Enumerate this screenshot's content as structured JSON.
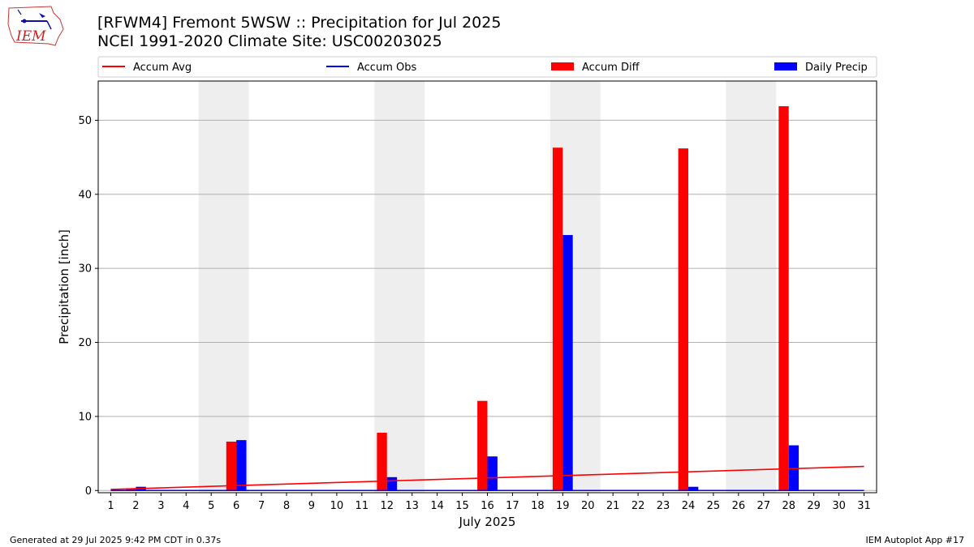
{
  "header": {
    "logo_text": "IEM",
    "title": "[RFWM4] Fremont 5WSW :: Precipitation for Jul 2025",
    "subtitle": "NCEI 1991-2020 Climate Site: USC00203025"
  },
  "footer": {
    "generated": "Generated at 29 Jul 2025 9:42 PM CDT in 0.37s",
    "app": "IEM Autoplot App #17"
  },
  "colors": {
    "accum_avg": "#ff0000",
    "accum_obs": "#0000ff",
    "accum_diff": "#ff0000",
    "daily_precip": "#0000ff",
    "weekend_shade": "#eeeeee",
    "grid": "#b0b0b0"
  },
  "chart_data": {
    "type": "bar",
    "xlabel": "July 2025",
    "ylabel": "Precipitation [inch]",
    "xlim": [
      0.5,
      31.5
    ],
    "ylim": [
      -0.3,
      55.3
    ],
    "yticks": [
      0,
      10,
      20,
      30,
      40,
      50
    ],
    "grid": "y",
    "legend_position": "top",
    "legend": [
      "Accum Avg",
      "Accum Obs",
      "Accum Diff",
      "Daily Precip"
    ],
    "shaded_days": [
      [
        5,
        6
      ],
      [
        12,
        13
      ],
      [
        19,
        20
      ],
      [
        26,
        27
      ]
    ],
    "days": [
      1,
      2,
      3,
      4,
      5,
      6,
      7,
      8,
      9,
      10,
      11,
      12,
      13,
      14,
      15,
      16,
      17,
      18,
      19,
      20,
      21,
      22,
      23,
      24,
      25,
      26,
      27,
      28,
      29,
      30,
      31
    ],
    "series": [
      {
        "name": "Accum Avg",
        "kind": "line",
        "x": [
          1,
          31
        ],
        "values": [
          0.15,
          3.25
        ]
      },
      {
        "name": "Accum Obs",
        "kind": "line",
        "x": [
          1,
          31
        ],
        "values": [
          0,
          0
        ]
      },
      {
        "name": "Accum Diff",
        "kind": "bar",
        "bars": [
          {
            "day": 2,
            "value": 0.2
          },
          {
            "day": 6,
            "value": 6.6
          },
          {
            "day": 12,
            "value": 7.8
          },
          {
            "day": 16,
            "value": 12.1
          },
          {
            "day": 19,
            "value": 46.3
          },
          {
            "day": 24,
            "value": 46.2
          },
          {
            "day": 28,
            "value": 51.9
          }
        ]
      },
      {
        "name": "Daily Precip",
        "kind": "bar",
        "bars": [
          {
            "day": 2,
            "value": 0.5
          },
          {
            "day": 6,
            "value": 6.8
          },
          {
            "day": 12,
            "value": 1.8
          },
          {
            "day": 16,
            "value": 4.6
          },
          {
            "day": 19,
            "value": 34.5
          },
          {
            "day": 24,
            "value": 0.5
          },
          {
            "day": 28,
            "value": 6.1
          }
        ]
      }
    ]
  }
}
